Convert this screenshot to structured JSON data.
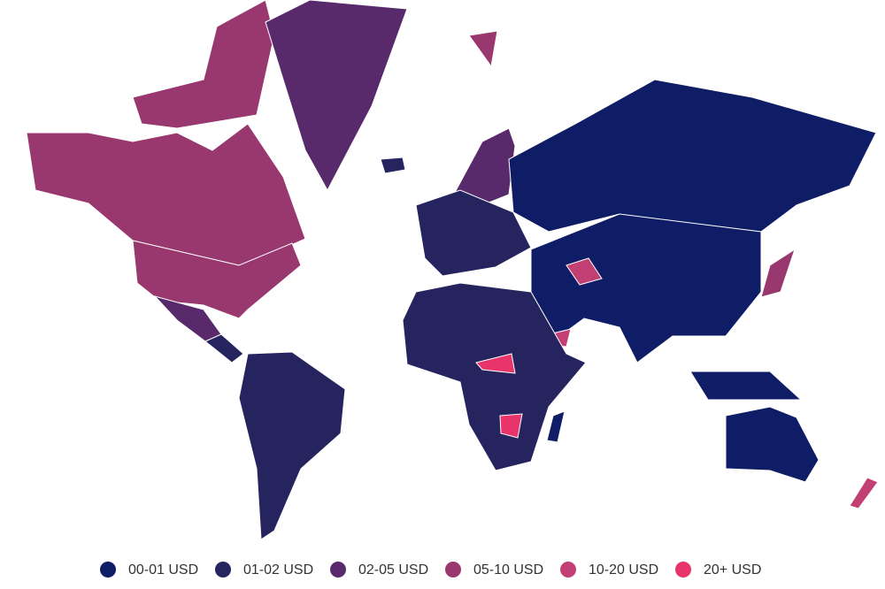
{
  "legend": {
    "items": [
      {
        "label": "00-01 USD",
        "color": "#0f1c66"
      },
      {
        "label": "01-02 USD",
        "color": "#25245f"
      },
      {
        "label": "02-05 USD",
        "color": "#58296b"
      },
      {
        "label": "05-10 USD",
        "color": "#99376f"
      },
      {
        "label": "10-20 USD",
        "color": "#c23f74"
      },
      {
        "label": "20+ USD",
        "color": "#e8336b"
      }
    ]
  }
}
